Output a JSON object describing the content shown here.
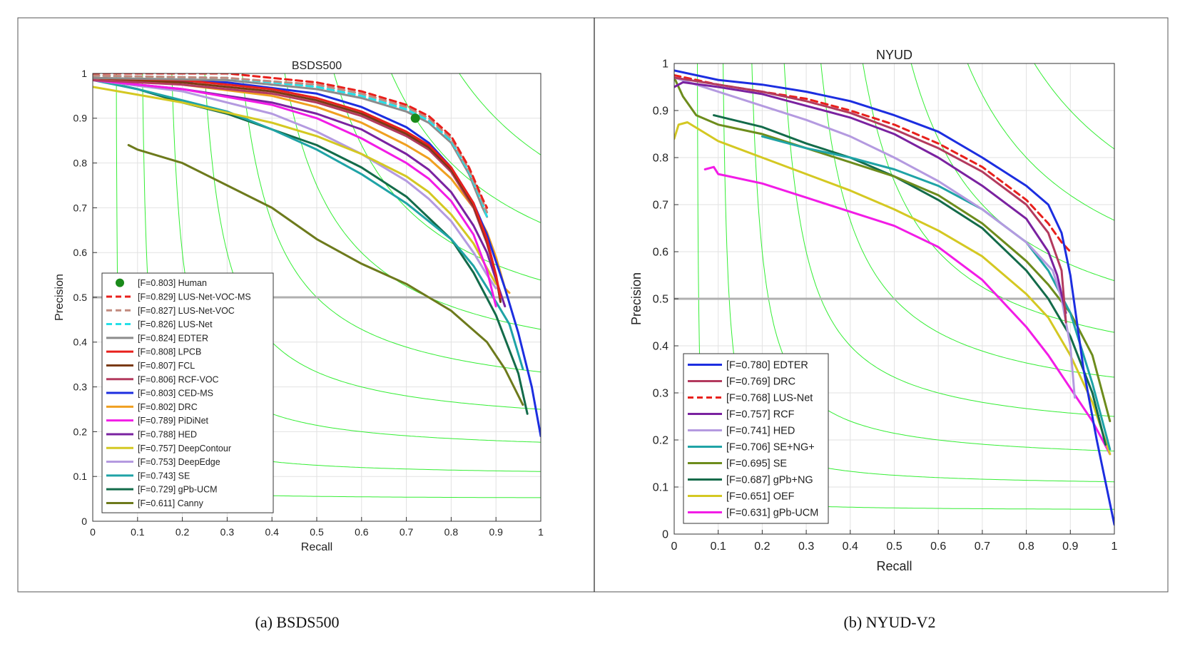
{
  "captions": {
    "a": "(a) BSDS500",
    "b": "(b) NYUD-V2"
  },
  "chart_data": [
    {
      "type": "line",
      "title": "BSDS500",
      "xlabel": "Recall",
      "ylabel": "Precision",
      "xlim": [
        0,
        1
      ],
      "ylim": [
        0,
        1
      ],
      "xticks": [
        "0",
        "0.1",
        "0.2",
        "0.3",
        "0.4",
        "0.5",
        "0.6",
        "0.7",
        "0.8",
        "0.9",
        "1"
      ],
      "yticks": [
        "0",
        "0.1",
        "0.2",
        "0.3",
        "0.4",
        "0.5",
        "0.6",
        "0.7",
        "0.8",
        "0.9",
        "1"
      ],
      "grid": true,
      "legend_position": "bottom-left",
      "iso_f_levels": [
        0.1,
        0.2,
        0.3,
        0.4,
        0.5,
        0.6,
        0.7,
        0.8,
        0.9
      ],
      "reference_line": 0.5,
      "points": [
        {
          "label": "[F=0.803] Human",
          "x": 0.72,
          "y": 0.9,
          "color": "#1a8a1a"
        }
      ],
      "series": [
        {
          "name": "[F=0.829] LUS-Net-VOC-MS",
          "color": "#e8201c",
          "dash": true,
          "x": [
            0,
            0.3,
            0.5,
            0.6,
            0.7,
            0.75,
            0.8,
            0.84,
            0.87,
            0.88
          ],
          "y": [
            1.0,
            1.0,
            0.98,
            0.96,
            0.93,
            0.905,
            0.86,
            0.79,
            0.72,
            0.7
          ]
        },
        {
          "name": "[F=0.827] LUS-Net-VOC",
          "color": "#c28a7e",
          "dash": true,
          "x": [
            0,
            0.3,
            0.5,
            0.6,
            0.7,
            0.75,
            0.8,
            0.84,
            0.87,
            0.88
          ],
          "y": [
            0.995,
            0.99,
            0.975,
            0.955,
            0.925,
            0.9,
            0.855,
            0.785,
            0.715,
            0.69
          ]
        },
        {
          "name": "[F=0.826] LUS-Net",
          "color": "#26e0e8",
          "dash": true,
          "x": [
            0,
            0.3,
            0.5,
            0.6,
            0.7,
            0.75,
            0.8,
            0.84,
            0.87,
            0.88
          ],
          "y": [
            0.995,
            0.99,
            0.97,
            0.95,
            0.92,
            0.895,
            0.85,
            0.78,
            0.71,
            0.68
          ]
        },
        {
          "name": "[F=0.824] EDTER",
          "color": "#8c8c8c",
          "dash": false,
          "x": [
            0,
            0.3,
            0.5,
            0.6,
            0.7,
            0.75,
            0.8,
            0.84,
            0.87,
            0.88
          ],
          "y": [
            0.99,
            0.985,
            0.965,
            0.945,
            0.915,
            0.89,
            0.845,
            0.775,
            0.7,
            0.68
          ]
        },
        {
          "name": "[F=0.808] LPCB",
          "color": "#e8201c",
          "dash": false,
          "x": [
            0,
            0.2,
            0.4,
            0.5,
            0.6,
            0.7,
            0.75,
            0.8,
            0.85,
            0.88,
            0.9,
            0.91
          ],
          "y": [
            0.99,
            0.985,
            0.965,
            0.945,
            0.915,
            0.87,
            0.84,
            0.79,
            0.71,
            0.63,
            0.55,
            0.5
          ]
        },
        {
          "name": "[F=0.807] FCL",
          "color": "#7a3a14",
          "dash": false,
          "x": [
            0,
            0.2,
            0.4,
            0.5,
            0.6,
            0.7,
            0.75,
            0.8,
            0.85,
            0.88,
            0.9,
            0.91
          ],
          "y": [
            0.99,
            0.98,
            0.96,
            0.94,
            0.91,
            0.865,
            0.835,
            0.785,
            0.705,
            0.625,
            0.55,
            0.49
          ]
        },
        {
          "name": "[F=0.806] RCF-VOC",
          "color": "#b33a5e",
          "dash": false,
          "x": [
            0,
            0.2,
            0.4,
            0.5,
            0.6,
            0.7,
            0.75,
            0.8,
            0.85,
            0.88,
            0.9,
            0.91
          ],
          "y": [
            0.985,
            0.975,
            0.955,
            0.935,
            0.905,
            0.86,
            0.83,
            0.78,
            0.7,
            0.62,
            0.55,
            0.49
          ]
        },
        {
          "name": "[F=0.803] CED-MS",
          "color": "#1c2ee0",
          "dash": false,
          "x": [
            0,
            0.3,
            0.5,
            0.6,
            0.7,
            0.75,
            0.8,
            0.85,
            0.88,
            0.92,
            0.95,
            0.98,
            1.0
          ],
          "y": [
            0.99,
            0.98,
            0.955,
            0.925,
            0.88,
            0.845,
            0.79,
            0.71,
            0.64,
            0.52,
            0.42,
            0.3,
            0.19
          ]
        },
        {
          "name": "[F=0.802] DRC",
          "color": "#f0a020",
          "dash": false,
          "x": [
            0,
            0.2,
            0.4,
            0.5,
            0.6,
            0.7,
            0.75,
            0.8,
            0.85,
            0.88,
            0.9,
            0.92,
            0.93
          ],
          "y": [
            0.99,
            0.975,
            0.95,
            0.925,
            0.89,
            0.84,
            0.81,
            0.765,
            0.7,
            0.645,
            0.59,
            0.52,
            0.51
          ]
        },
        {
          "name": "[F=0.789] PiDiNet",
          "color": "#f21ce6",
          "dash": false,
          "x": [
            0,
            0.2,
            0.4,
            0.5,
            0.6,
            0.7,
            0.75,
            0.8,
            0.85,
            0.88,
            0.9
          ],
          "y": [
            0.985,
            0.965,
            0.93,
            0.9,
            0.855,
            0.8,
            0.765,
            0.715,
            0.64,
            0.56,
            0.48
          ]
        },
        {
          "name": "[F=0.788] HED",
          "color": "#7a22a0",
          "dash": false,
          "x": [
            0,
            0.2,
            0.4,
            0.5,
            0.6,
            0.7,
            0.75,
            0.8,
            0.85,
            0.88,
            0.9,
            0.92
          ],
          "y": [
            0.985,
            0.965,
            0.935,
            0.91,
            0.875,
            0.82,
            0.785,
            0.735,
            0.66,
            0.6,
            0.54,
            0.48
          ]
        },
        {
          "name": "[F=0.757] DeepContour",
          "color": "#d4c822",
          "dash": false,
          "x": [
            0,
            0.2,
            0.4,
            0.5,
            0.6,
            0.7,
            0.75,
            0.8,
            0.85,
            0.88,
            0.9
          ],
          "y": [
            0.97,
            0.935,
            0.89,
            0.86,
            0.82,
            0.77,
            0.735,
            0.685,
            0.62,
            0.565,
            0.53
          ]
        },
        {
          "name": "[F=0.753] DeepEdge",
          "color": "#b49ae0",
          "dash": false,
          "x": [
            0,
            0.2,
            0.4,
            0.5,
            0.6,
            0.7,
            0.75,
            0.8,
            0.85,
            0.88,
            0.9
          ],
          "y": [
            0.985,
            0.96,
            0.91,
            0.87,
            0.82,
            0.76,
            0.72,
            0.67,
            0.6,
            0.55,
            0.52
          ]
        },
        {
          "name": "[F=0.743] SE",
          "color": "#1fa3a6",
          "dash": false,
          "x": [
            0,
            0.1,
            0.2,
            0.3,
            0.4,
            0.5,
            0.6,
            0.7,
            0.8,
            0.85,
            0.9,
            0.93,
            0.96
          ],
          "y": [
            0.985,
            0.965,
            0.94,
            0.915,
            0.875,
            0.83,
            0.775,
            0.71,
            0.63,
            0.57,
            0.49,
            0.44,
            0.34
          ]
        },
        {
          "name": "[F=0.729] gPb-UCM",
          "color": "#136b4a",
          "dash": false,
          "x": [
            0.03,
            0.1,
            0.2,
            0.3,
            0.4,
            0.5,
            0.6,
            0.7,
            0.8,
            0.85,
            0.9,
            0.95,
            0.97
          ],
          "y": [
            0.98,
            0.965,
            0.935,
            0.91,
            0.875,
            0.84,
            0.79,
            0.725,
            0.63,
            0.555,
            0.46,
            0.33,
            0.24
          ]
        },
        {
          "name": "[F=0.611] Canny",
          "color": "#6d7a1c",
          "dash": false,
          "x": [
            0.08,
            0.1,
            0.2,
            0.3,
            0.4,
            0.5,
            0.6,
            0.7,
            0.75,
            0.8,
            0.88,
            0.92,
            0.96
          ],
          "y": [
            0.84,
            0.83,
            0.8,
            0.75,
            0.7,
            0.63,
            0.575,
            0.53,
            0.5,
            0.47,
            0.4,
            0.34,
            0.26
          ]
        }
      ]
    },
    {
      "type": "line",
      "title": "NYUD",
      "xlabel": "Recall",
      "ylabel": "Precision",
      "xlim": [
        0,
        1
      ],
      "ylim": [
        0,
        1
      ],
      "xticks": [
        "0",
        "0.1",
        "0.2",
        "0.3",
        "0.4",
        "0.5",
        "0.6",
        "0.7",
        "0.8",
        "0.9",
        "1"
      ],
      "yticks": [
        "0",
        "0.1",
        "0.2",
        "0.3",
        "0.4",
        "0.5",
        "0.6",
        "0.7",
        "0.8",
        "0.9",
        "1"
      ],
      "grid": true,
      "legend_position": "bottom-left",
      "iso_f_levels": [
        0.1,
        0.2,
        0.3,
        0.4,
        0.5,
        0.6,
        0.7,
        0.8,
        0.9
      ],
      "reference_line": 0.5,
      "points": [],
      "series": [
        {
          "name": "[F=0.780] EDTER",
          "color": "#1c2ee0",
          "dash": false,
          "x": [
            0,
            0.1,
            0.2,
            0.3,
            0.4,
            0.5,
            0.6,
            0.7,
            0.8,
            0.85,
            0.88,
            0.9,
            0.93,
            0.96,
            1.0
          ],
          "y": [
            0.985,
            0.965,
            0.955,
            0.94,
            0.92,
            0.89,
            0.855,
            0.8,
            0.74,
            0.7,
            0.64,
            0.55,
            0.35,
            0.2,
            0.02
          ]
        },
        {
          "name": "[F=0.769] DRC",
          "color": "#b33a5e",
          "dash": false,
          "x": [
            0,
            0.1,
            0.2,
            0.3,
            0.4,
            0.5,
            0.6,
            0.7,
            0.8,
            0.85,
            0.88,
            0.89
          ],
          "y": [
            0.97,
            0.955,
            0.94,
            0.92,
            0.895,
            0.86,
            0.82,
            0.77,
            0.7,
            0.64,
            0.56,
            0.45
          ]
        },
        {
          "name": "[F=0.768] LUS-Net",
          "color": "#e8201c",
          "dash": true,
          "x": [
            0,
            0.1,
            0.2,
            0.3,
            0.4,
            0.5,
            0.6,
            0.7,
            0.8,
            0.85,
            0.88,
            0.9
          ],
          "y": [
            0.975,
            0.955,
            0.94,
            0.925,
            0.9,
            0.87,
            0.83,
            0.78,
            0.71,
            0.66,
            0.62,
            0.6
          ]
        },
        {
          "name": "[F=0.757] RCF",
          "color": "#7a22a0",
          "dash": false,
          "x": [
            0,
            0.02,
            0.1,
            0.2,
            0.3,
            0.4,
            0.5,
            0.6,
            0.7,
            0.8,
            0.85,
            0.87,
            0.89
          ],
          "y": [
            0.95,
            0.96,
            0.95,
            0.935,
            0.91,
            0.885,
            0.85,
            0.8,
            0.74,
            0.67,
            0.6,
            0.55,
            0.47
          ]
        },
        {
          "name": "[F=0.741] HED",
          "color": "#b49ae0",
          "dash": false,
          "x": [
            0,
            0.1,
            0.2,
            0.3,
            0.4,
            0.5,
            0.6,
            0.7,
            0.8,
            0.86,
            0.88,
            0.9,
            0.91
          ],
          "y": [
            0.97,
            0.94,
            0.91,
            0.88,
            0.845,
            0.8,
            0.75,
            0.69,
            0.62,
            0.56,
            0.5,
            0.4,
            0.29
          ]
        },
        {
          "name": "[F=0.706] SE+NG+",
          "color": "#1fa3a6",
          "dash": false,
          "x": [
            0.2,
            0.3,
            0.4,
            0.5,
            0.6,
            0.7,
            0.8,
            0.85,
            0.9,
            0.95,
            0.99
          ],
          "y": [
            0.845,
            0.82,
            0.8,
            0.775,
            0.74,
            0.69,
            0.62,
            0.56,
            0.47,
            0.32,
            0.18
          ]
        },
        {
          "name": "[F=0.695] SE",
          "color": "#6d8c1c",
          "dash": false,
          "x": [
            0,
            0.02,
            0.05,
            0.1,
            0.2,
            0.3,
            0.4,
            0.5,
            0.6,
            0.7,
            0.8,
            0.85,
            0.9,
            0.95,
            0.99
          ],
          "y": [
            0.97,
            0.93,
            0.89,
            0.87,
            0.85,
            0.82,
            0.79,
            0.76,
            0.72,
            0.66,
            0.58,
            0.53,
            0.47,
            0.38,
            0.24
          ]
        },
        {
          "name": "[F=0.687] gPb+NG",
          "color": "#136b4a",
          "dash": false,
          "x": [
            0.09,
            0.2,
            0.3,
            0.4,
            0.5,
            0.6,
            0.7,
            0.8,
            0.85,
            0.9,
            0.95,
            0.98
          ],
          "y": [
            0.89,
            0.865,
            0.83,
            0.8,
            0.76,
            0.71,
            0.65,
            0.56,
            0.5,
            0.42,
            0.3,
            0.19
          ]
        },
        {
          "name": "[F=0.651] OEF",
          "color": "#d4c822",
          "dash": false,
          "x": [
            0,
            0.01,
            0.03,
            0.1,
            0.2,
            0.3,
            0.4,
            0.5,
            0.6,
            0.7,
            0.8,
            0.85,
            0.9,
            0.95,
            0.99
          ],
          "y": [
            0.84,
            0.87,
            0.875,
            0.835,
            0.8,
            0.765,
            0.73,
            0.69,
            0.645,
            0.59,
            0.51,
            0.46,
            0.38,
            0.28,
            0.17
          ]
        },
        {
          "name": "[F=0.631] gPb-UCM",
          "color": "#f21ce6",
          "dash": false,
          "x": [
            0.07,
            0.09,
            0.1,
            0.2,
            0.3,
            0.4,
            0.5,
            0.6,
            0.7,
            0.8,
            0.85,
            0.9,
            0.95,
            0.99
          ],
          "y": [
            0.775,
            0.78,
            0.765,
            0.745,
            0.715,
            0.685,
            0.655,
            0.61,
            0.54,
            0.44,
            0.38,
            0.31,
            0.24,
            0.17
          ]
        }
      ]
    }
  ]
}
